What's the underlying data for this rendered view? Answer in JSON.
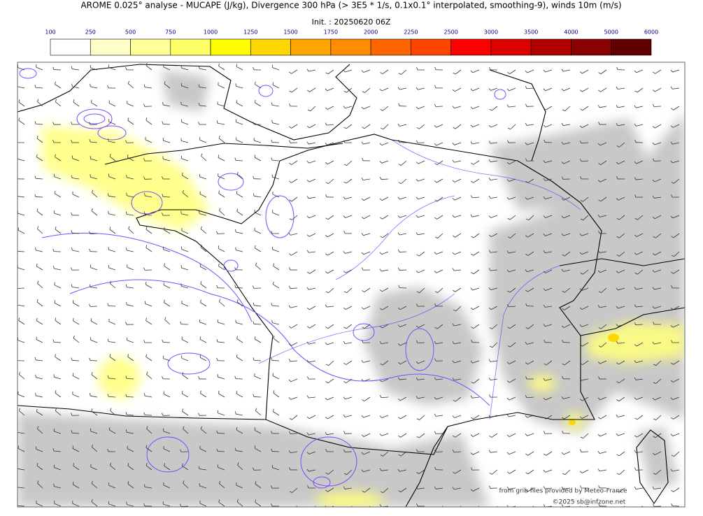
{
  "header": {
    "title": "AROME 0.025° analyse - MUCAPE (J/kg), Divergence 300 hPa (> 3E5 * 1/s, 0.1x0.1° interpolated, smoothing-9), winds 10m (m/s)",
    "subtitle": "Init. : 20250620 06Z"
  },
  "colorbar": {
    "levels": [
      100,
      250,
      500,
      750,
      1000,
      1250,
      1500,
      1750,
      2000,
      2250,
      2500,
      3000,
      3500,
      4000,
      5000,
      6000
    ],
    "colors": [
      "#ffffff",
      "#ffffc8",
      "#ffff99",
      "#ffff66",
      "#ffff00",
      "#ffd700",
      "#ffa500",
      "#ff8c00",
      "#ff6600",
      "#ff4500",
      "#ff0000",
      "#dd0000",
      "#b00000",
      "#8b0000",
      "#600000"
    ]
  },
  "credits": [
    "from grib files provided by Meteo-France",
    "©2025 sb@infzone.net"
  ]
}
